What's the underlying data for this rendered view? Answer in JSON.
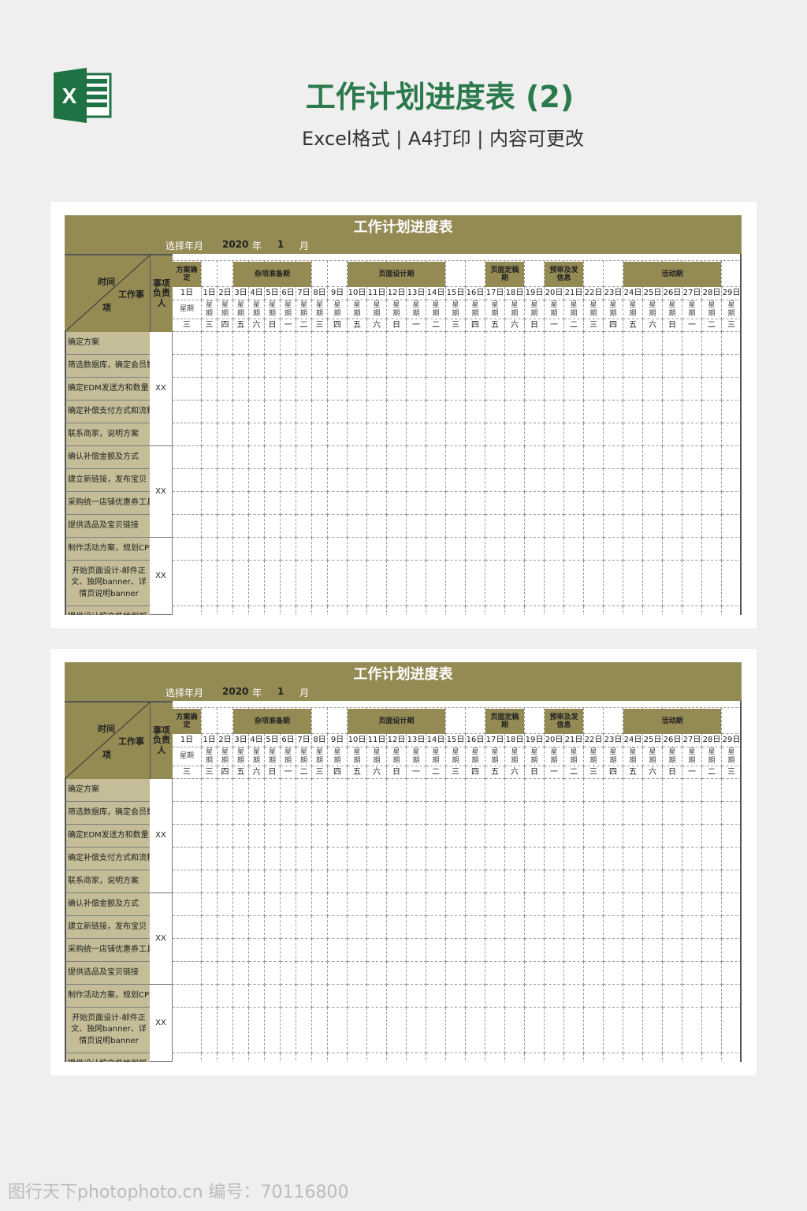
{
  "header": {
    "title": "工作计划进度表 (2)",
    "subtitle": "Excel格式 | A4打印 | 内容可更改"
  },
  "sheet": {
    "title": "工作计划进度表",
    "select_label": "选择年月",
    "year": "2020",
    "year_unit": "年",
    "month": "1",
    "month_unit": "月",
    "corner": {
      "time": "时间",
      "task": "工作事",
      "task2": "项"
    },
    "owner_header": "事项负责人",
    "colors": {
      "band": "#948a54",
      "task_bg": "#c4bd97"
    },
    "first_col": {
      "date": "1日",
      "week": "星期",
      "weekday": "三"
    },
    "dates": [
      "1日",
      "2日",
      "3日",
      "4日",
      "5日",
      "6日",
      "7日",
      "8日",
      "9日",
      "10日",
      "11日",
      "12日",
      "13日",
      "14日",
      "15日",
      "16日",
      "17日",
      "18日",
      "19日",
      "20日",
      "21日",
      "22日",
      "23日",
      "24日",
      "25日",
      "26日",
      "27日",
      "28日",
      "29日"
    ],
    "week_label": "星期",
    "weekdays": [
      "三",
      "四",
      "五",
      "六",
      "日",
      "一",
      "二",
      "三",
      "四",
      "五",
      "六",
      "日",
      "一",
      "二",
      "三",
      "四",
      "五",
      "六",
      "日",
      "一",
      "二",
      "三",
      "四",
      "五",
      "六",
      "日",
      "一",
      "二",
      "三"
    ],
    "phases": [
      {
        "label": "方案确定",
        "from": -1,
        "to": -1
      },
      {
        "label": "杂项准备期",
        "from": 2,
        "to": 6
      },
      {
        "label": "页面设计期",
        "from": 9,
        "to": 13
      },
      {
        "label": "页面定稿期",
        "from": 16,
        "to": 17
      },
      {
        "label": "预审及发信息",
        "from": 19,
        "to": 20
      },
      {
        "label": "活动期",
        "from": 23,
        "to": 27
      }
    ],
    "tasks": [
      "确定方案",
      "筛选数据库，确定会员数",
      "确定EDM发送方和数量",
      "确定补偿支付方式和流程",
      "联系商家，说明方案",
      "确认补偿金额及方式",
      "建立新链接，发布宝贝",
      "采购统一店铺优惠券工具",
      "提供选品及宝贝链接",
      "制作活动方案，规划CPS",
      "开始页面设计-邮件正文、独网banner、详情页说明banner",
      "提供设计稿文件给到邮"
    ],
    "owners": [
      {
        "label": "XX",
        "from": 0,
        "to": 4
      },
      {
        "label": "XX",
        "from": 5,
        "to": 8
      },
      {
        "label": "XX",
        "from": 9,
        "to": 11
      }
    ]
  },
  "watermark": "图行天下photophoto.cn 编号：70116800"
}
